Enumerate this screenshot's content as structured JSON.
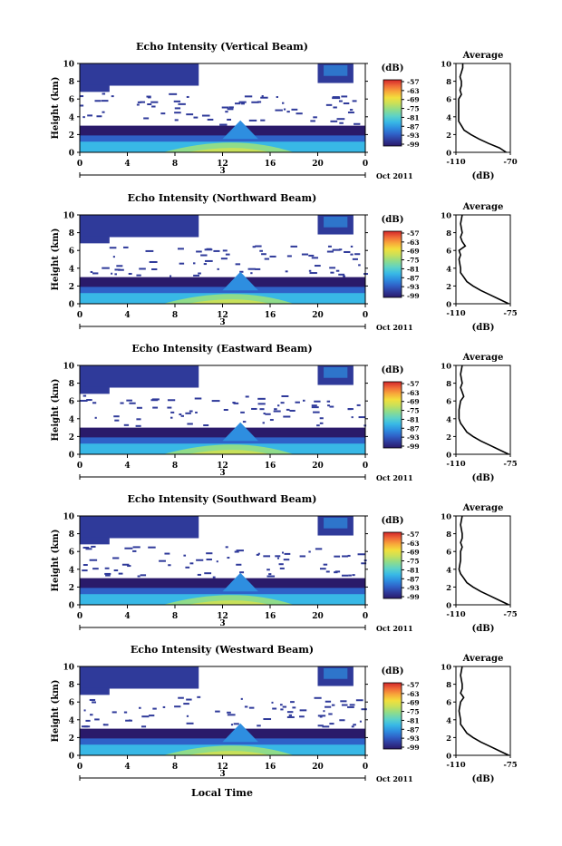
{
  "chart_data": {
    "type": "heatmap",
    "shared": {
      "x_ticks": [
        "0",
        "4",
        "8",
        "12",
        "16",
        "20",
        "0"
      ],
      "date_day": "3",
      "date_label": "Oct 2011",
      "x_axis_label": "Local Time",
      "y_label": "Height (km)",
      "y_ticks": [
        "0",
        "2",
        "4",
        "6",
        "8",
        "10"
      ],
      "ylim": [
        0,
        10
      ],
      "xlim_hours": [
        0,
        24
      ],
      "colorbar_unit": "(dB)",
      "colorbar_ticks": [
        "-57",
        "-63",
        "-69",
        "-75",
        "-81",
        "-87",
        "-93",
        "-99"
      ],
      "colorbar_colors": [
        "#2a1a6a",
        "#2f3a9a",
        "#2f62c8",
        "#2e8ee0",
        "#38b8e6",
        "#5cd2c8",
        "#8fdc8a",
        "#c8e05a",
        "#f2df3c",
        "#f8a93a",
        "#f06a38",
        "#d2262a"
      ],
      "profile_title": "Average",
      "profile_unit": "(dB)",
      "profile_y_ticks": [
        "0",
        "2",
        "4",
        "6",
        "8",
        "10"
      ]
    },
    "panels": [
      {
        "title": "Echo Intensity (Vertical Beam)",
        "profile_xlim": [
          -110,
          -70
        ],
        "profile_x_ticks": [
          "-110",
          "-70"
        ],
        "profile": [
          [
            0.0,
            -73
          ],
          [
            0.5,
            -78
          ],
          [
            1.0,
            -86
          ],
          [
            1.5,
            -93
          ],
          [
            2.0,
            -99
          ],
          [
            2.5,
            -104
          ],
          [
            3.0,
            -106
          ],
          [
            3.5,
            -108
          ],
          [
            4.0,
            -108
          ],
          [
            5.0,
            -108
          ],
          [
            6.0,
            -108
          ],
          [
            6.5,
            -106
          ],
          [
            7.0,
            -107
          ],
          [
            7.5,
            -106
          ],
          [
            8.0,
            -106
          ],
          [
            8.5,
            -107
          ],
          [
            9.0,
            -106
          ],
          [
            9.5,
            -105
          ],
          [
            10.0,
            -105
          ]
        ]
      },
      {
        "title": "Echo Intensity (Northward Beam)",
        "profile_xlim": [
          -110,
          -75
        ],
        "profile_x_ticks": [
          "-110",
          "-75"
        ],
        "profile": [
          [
            0.0,
            -76
          ],
          [
            0.5,
            -82
          ],
          [
            1.0,
            -88
          ],
          [
            1.5,
            -94
          ],
          [
            2.0,
            -99
          ],
          [
            2.5,
            -103
          ],
          [
            3.0,
            -105
          ],
          [
            3.5,
            -107
          ],
          [
            4.0,
            -107
          ],
          [
            5.0,
            -108
          ],
          [
            5.5,
            -107
          ],
          [
            6.0,
            -108
          ],
          [
            6.5,
            -104
          ],
          [
            7.0,
            -106
          ],
          [
            7.5,
            -107
          ],
          [
            8.0,
            -106
          ],
          [
            9.0,
            -107
          ],
          [
            10.0,
            -106
          ]
        ]
      },
      {
        "title": "Echo Intensity (Eastward Beam)",
        "profile_xlim": [
          -110,
          -75
        ],
        "profile_x_ticks": [
          "-110",
          "-75"
        ],
        "profile": [
          [
            0.0,
            -76
          ],
          [
            0.5,
            -82
          ],
          [
            1.0,
            -88
          ],
          [
            1.5,
            -94
          ],
          [
            2.0,
            -99
          ],
          [
            2.5,
            -103
          ],
          [
            3.0,
            -105
          ],
          [
            3.5,
            -107
          ],
          [
            4.0,
            -108
          ],
          [
            5.0,
            -108
          ],
          [
            6.0,
            -107
          ],
          [
            6.5,
            -105
          ],
          [
            7.0,
            -106
          ],
          [
            7.5,
            -107
          ],
          [
            8.0,
            -106
          ],
          [
            9.0,
            -107
          ],
          [
            10.0,
            -106
          ]
        ]
      },
      {
        "title": "Echo Intensity (Southward Beam)",
        "profile_xlim": [
          -110,
          -75
        ],
        "profile_x_ticks": [
          "-110",
          "-75"
        ],
        "profile": [
          [
            0.0,
            -76
          ],
          [
            0.5,
            -82
          ],
          [
            1.0,
            -88
          ],
          [
            1.5,
            -94
          ],
          [
            2.0,
            -99
          ],
          [
            2.5,
            -103
          ],
          [
            3.0,
            -105
          ],
          [
            3.5,
            -107
          ],
          [
            4.0,
            -108
          ],
          [
            5.0,
            -107
          ],
          [
            6.0,
            -107
          ],
          [
            6.5,
            -106
          ],
          [
            7.0,
            -107
          ],
          [
            7.5,
            -106
          ],
          [
            8.0,
            -106
          ],
          [
            9.0,
            -107
          ],
          [
            10.0,
            -106
          ]
        ]
      },
      {
        "title": "Echo Intensity (Westward Beam)",
        "profile_xlim": [
          -110,
          -75
        ],
        "profile_x_ticks": [
          "-110",
          "-75"
        ],
        "profile": [
          [
            0.0,
            -76
          ],
          [
            0.5,
            -82
          ],
          [
            1.0,
            -88
          ],
          [
            1.5,
            -94
          ],
          [
            2.0,
            -99
          ],
          [
            2.5,
            -103
          ],
          [
            3.0,
            -105
          ],
          [
            3.5,
            -107
          ],
          [
            4.0,
            -107
          ],
          [
            5.0,
            -108
          ],
          [
            6.0,
            -107
          ],
          [
            6.5,
            -105
          ],
          [
            7.0,
            -107
          ],
          [
            7.5,
            -106
          ],
          [
            8.0,
            -106
          ],
          [
            9.0,
            -107
          ],
          [
            10.0,
            -106
          ]
        ]
      }
    ]
  }
}
